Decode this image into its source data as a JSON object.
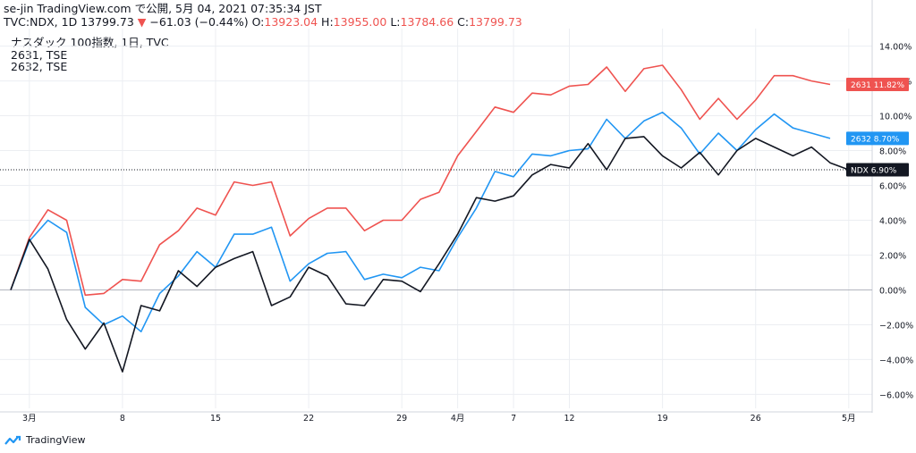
{
  "header": {
    "line1": "se-jin TradingView.com で公開, 5月 04, 2021 07:35:34 JST",
    "symbol": "TVC:NDX, 1D 13799.73",
    "change": "−61.03 (−0.44%)",
    "o_label": "O:",
    "o_value": "13923.04",
    "h_label": "H:",
    "h_value": "13955.00",
    "l_label": "L:",
    "l_value": "13784.66",
    "c_label": "C:",
    "c_value": "13799.73"
  },
  "legend": [
    "ナスダック 100指数, 1日, TVC",
    "2631, TSE",
    "2632, TSE"
  ],
  "footer": {
    "brand": "TradingView"
  },
  "colors": {
    "red": "#ef5350",
    "blue": "#2196f3",
    "black": "#131722",
    "grid": "#eceef2"
  },
  "chart_data": {
    "type": "line",
    "x_tick_labels": [
      "3月",
      "8",
      "15",
      "22",
      "29",
      "4月",
      "7",
      "12",
      "19",
      "26",
      "5月"
    ],
    "x_tick_indices": [
      1,
      6,
      11,
      16,
      21,
      24,
      27,
      30,
      35,
      40,
      45
    ],
    "y_tick_labels": [
      "14.00%",
      "12.00%",
      "10.00%",
      "8.00%",
      "6.00%",
      "4.00%",
      "2.00%",
      "0.00%",
      "−2.00%",
      "−4.00%",
      "−6.00%"
    ],
    "ylim": [
      -6.8,
      14.8
    ],
    "series": [
      {
        "name": "2631",
        "label": "2631",
        "value_label": "11.82%",
        "color": "#ef5350",
        "values": [
          0,
          3.0,
          4.6,
          4.0,
          -0.3,
          -0.2,
          0.6,
          0.5,
          2.6,
          3.4,
          4.7,
          4.3,
          6.2,
          6.0,
          6.2,
          3.1,
          4.1,
          4.7,
          4.7,
          3.4,
          4.0,
          4.0,
          5.2,
          5.6,
          7.7,
          9.1,
          10.5,
          10.2,
          11.3,
          11.2,
          11.7,
          11.8,
          12.8,
          11.4,
          12.7,
          12.9,
          11.5,
          9.8,
          11.0,
          9.8,
          10.9,
          12.3,
          12.3,
          12.0,
          11.8
        ]
      },
      {
        "name": "2632",
        "label": "2632",
        "value_label": "8.70%",
        "color": "#2196f3",
        "values": [
          0,
          2.8,
          4.0,
          3.3,
          -1.0,
          -2.0,
          -1.5,
          -2.4,
          -0.2,
          0.8,
          2.2,
          1.3,
          3.2,
          3.2,
          3.6,
          0.5,
          1.5,
          2.1,
          2.2,
          0.6,
          0.9,
          0.7,
          1.3,
          1.1,
          3.0,
          4.7,
          6.8,
          6.5,
          7.8,
          7.7,
          8.0,
          8.1,
          9.8,
          8.7,
          9.7,
          10.2,
          9.3,
          7.8,
          9.0,
          8.0,
          9.2,
          10.1,
          9.3,
          9.0,
          8.7
        ]
      },
      {
        "name": "NDX",
        "label": "NDX",
        "value_label": "6.90%",
        "color": "#131722",
        "values": [
          0,
          2.9,
          1.2,
          -1.7,
          -3.4,
          -1.9,
          -4.7,
          -0.9,
          -1.2,
          1.1,
          0.2,
          1.3,
          1.8,
          2.2,
          -0.9,
          -0.4,
          1.3,
          0.8,
          -0.8,
          -0.9,
          0.6,
          0.5,
          -0.1,
          1.5,
          3.2,
          5.3,
          5.1,
          5.4,
          6.6,
          7.2,
          7.0,
          8.4,
          6.9,
          8.7,
          8.8,
          7.7,
          7.0,
          7.9,
          6.6,
          8.0,
          8.7,
          8.2,
          7.7,
          8.2,
          7.3,
          6.9
        ]
      }
    ]
  }
}
